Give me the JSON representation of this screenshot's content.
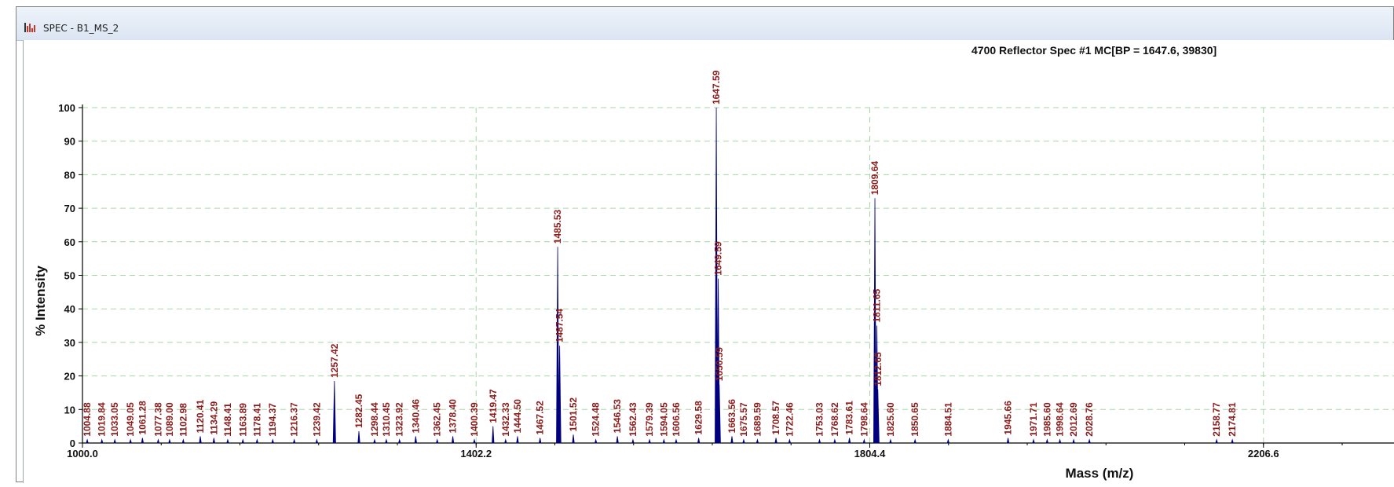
{
  "window": {
    "title": "SPEC - B1_MS_2"
  },
  "colors": {
    "trace": "#00007f",
    "peak_label": "#8b1a1a",
    "grid": "#a6d8a6",
    "axis": "#000000"
  },
  "chart_data": {
    "type": "line",
    "header": "4700 Reflector Spec #1 MC[BP = 1647.6, 39830]",
    "xlabel": "Mass (m/z)",
    "ylabel": "% Intensity",
    "xlim": [
      1000.0,
      2340.0
    ],
    "ylim": [
      0,
      100
    ],
    "x_ticks": [
      "1000.0",
      "1402.2",
      "1804.4",
      "2206.6"
    ],
    "y_ticks": [
      "0",
      "10",
      "20",
      "30",
      "40",
      "50",
      "60",
      "70",
      "80",
      "90",
      "100"
    ],
    "grid": true,
    "peaks": [
      {
        "mz": 1004.88,
        "intensity": 1.0,
        "label": "1004.88"
      },
      {
        "mz": 1019.84,
        "intensity": 1.0,
        "label": "1019.84"
      },
      {
        "mz": 1033.05,
        "intensity": 1.0,
        "label": "1033.05"
      },
      {
        "mz": 1049.05,
        "intensity": 1.0,
        "label": "1049.05"
      },
      {
        "mz": 1061.28,
        "intensity": 1.5,
        "label": "1061.28"
      },
      {
        "mz": 1077.38,
        "intensity": 1.0,
        "label": "1077.38"
      },
      {
        "mz": 1089.0,
        "intensity": 1.0,
        "label": "1089.00"
      },
      {
        "mz": 1102.98,
        "intensity": 1.0,
        "label": "1102.98"
      },
      {
        "mz": 1120.41,
        "intensity": 2.0,
        "label": "1120.41"
      },
      {
        "mz": 1134.29,
        "intensity": 1.5,
        "label": "1134.29"
      },
      {
        "mz": 1148.41,
        "intensity": 1.0,
        "label": "1148.41"
      },
      {
        "mz": 1163.89,
        "intensity": 1.0,
        "label": "1163.89"
      },
      {
        "mz": 1178.41,
        "intensity": 1.0,
        "label": "1178.41"
      },
      {
        "mz": 1194.37,
        "intensity": 1.0,
        "label": "1194.37"
      },
      {
        "mz": 1216.37,
        "intensity": 1.0,
        "label": "1216.37"
      },
      {
        "mz": 1239.42,
        "intensity": 1.0,
        "label": "1239.42"
      },
      {
        "mz": 1257.42,
        "intensity": 18.5,
        "label": "1257.42"
      },
      {
        "mz": 1282.45,
        "intensity": 3.5,
        "label": "1282.45"
      },
      {
        "mz": 1298.44,
        "intensity": 1.0,
        "label": "1298.44"
      },
      {
        "mz": 1310.45,
        "intensity": 1.0,
        "label": "1310.45"
      },
      {
        "mz": 1323.92,
        "intensity": 1.0,
        "label": "1323.92"
      },
      {
        "mz": 1340.46,
        "intensity": 2.0,
        "label": "1340.46"
      },
      {
        "mz": 1362.45,
        "intensity": 1.0,
        "label": "1362.45"
      },
      {
        "mz": 1378.4,
        "intensity": 2.0,
        "label": "1378.40"
      },
      {
        "mz": 1400.39,
        "intensity": 1.0,
        "label": "1400.39"
      },
      {
        "mz": 1419.47,
        "intensity": 5.0,
        "label": "1419.47"
      },
      {
        "mz": 1432.33,
        "intensity": 1.0,
        "label": "1432.33"
      },
      {
        "mz": 1444.5,
        "intensity": 2.0,
        "label": "1444.50"
      },
      {
        "mz": 1467.52,
        "intensity": 1.5,
        "label": "1467.52"
      },
      {
        "mz": 1485.53,
        "intensity": 58.5,
        "label": "1485.53"
      },
      {
        "mz": 1487.54,
        "intensity": 29.0,
        "label": "1487.54"
      },
      {
        "mz": 1501.52,
        "intensity": 2.5,
        "label": "1501.52"
      },
      {
        "mz": 1524.48,
        "intensity": 1.0,
        "label": "1524.48"
      },
      {
        "mz": 1546.53,
        "intensity": 2.0,
        "label": "1546.53"
      },
      {
        "mz": 1562.43,
        "intensity": 1.0,
        "label": "1562.43"
      },
      {
        "mz": 1579.39,
        "intensity": 1.0,
        "label": "1579.39"
      },
      {
        "mz": 1594.05,
        "intensity": 1.0,
        "label": "1594.05"
      },
      {
        "mz": 1606.56,
        "intensity": 1.0,
        "label": "1606.56"
      },
      {
        "mz": 1629.58,
        "intensity": 1.5,
        "label": "1629.58"
      },
      {
        "mz": 1647.59,
        "intensity": 100.0,
        "label": "1647.59"
      },
      {
        "mz": 1649.59,
        "intensity": 49.0,
        "label": "1649.59"
      },
      {
        "mz": 1650.59,
        "intensity": 17.5,
        "label": "1650.59"
      },
      {
        "mz": 1663.56,
        "intensity": 2.0,
        "label": "1663.56"
      },
      {
        "mz": 1675.57,
        "intensity": 1.0,
        "label": "1675.57"
      },
      {
        "mz": 1689.59,
        "intensity": 1.0,
        "label": "1689.59"
      },
      {
        "mz": 1708.57,
        "intensity": 1.5,
        "label": "1708.57"
      },
      {
        "mz": 1722.46,
        "intensity": 1.0,
        "label": "1722.46"
      },
      {
        "mz": 1753.03,
        "intensity": 1.0,
        "label": "1753.03"
      },
      {
        "mz": 1768.62,
        "intensity": 1.0,
        "label": "1768.62"
      },
      {
        "mz": 1783.61,
        "intensity": 1.5,
        "label": "1783.61"
      },
      {
        "mz": 1798.64,
        "intensity": 1.0,
        "label": "1798.64"
      },
      {
        "mz": 1809.64,
        "intensity": 73.0,
        "label": "1809.64"
      },
      {
        "mz": 1811.65,
        "intensity": 35.0,
        "label": "1811.65"
      },
      {
        "mz": 1812.65,
        "intensity": 16.0,
        "label": "1812.65"
      },
      {
        "mz": 1825.6,
        "intensity": 1.0,
        "label": "1825.60"
      },
      {
        "mz": 1850.65,
        "intensity": 1.0,
        "label": "1850.65"
      },
      {
        "mz": 1884.51,
        "intensity": 1.0,
        "label": "1884.51"
      },
      {
        "mz": 1945.66,
        "intensity": 1.5,
        "label": "1945.66"
      },
      {
        "mz": 1971.71,
        "intensity": 1.0,
        "label": "1971.71"
      },
      {
        "mz": 1985.6,
        "intensity": 1.0,
        "label": "1985.60"
      },
      {
        "mz": 1998.64,
        "intensity": 1.0,
        "label": "1998.64"
      },
      {
        "mz": 2012.69,
        "intensity": 1.0,
        "label": "2012.69"
      },
      {
        "mz": 2028.76,
        "intensity": 1.0,
        "label": "2028.76"
      },
      {
        "mz": 2158.77,
        "intensity": 1.0,
        "label": "2158.77"
      },
      {
        "mz": 2174.81,
        "intensity": 1.0,
        "label": "2174.81"
      }
    ]
  }
}
